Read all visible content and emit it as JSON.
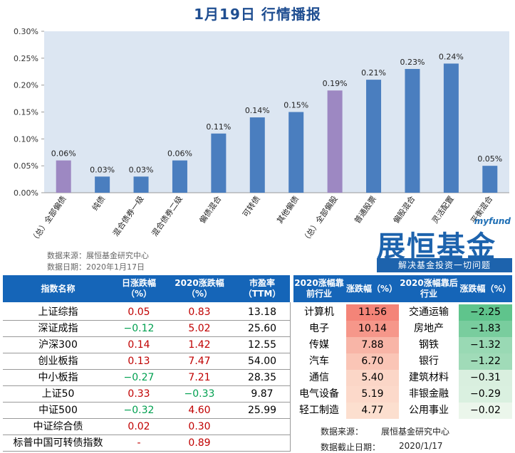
{
  "title": "1月19日  行情播报",
  "chart_data": {
    "type": "bar",
    "categories": [
      "（总）全部偏债",
      "纯债",
      "混合债券一级",
      "混合债券二级",
      "偏债混合",
      "可转债",
      "其他偏债",
      "（总）全部偏股",
      "普通股票",
      "偏股混合",
      "灵活配置",
      "平衡混合"
    ],
    "values": [
      0.06,
      0.03,
      0.03,
      0.06,
      0.11,
      0.14,
      0.15,
      0.19,
      0.21,
      0.23,
      0.24,
      0.05
    ],
    "value_labels": [
      "0.06%",
      "0.03%",
      "0.03%",
      "0.06%",
      "0.11%",
      "0.14%",
      "0.15%",
      "0.19%",
      "0.21%",
      "0.23%",
      "0.24%",
      "0.05%"
    ],
    "highlight": [
      true,
      false,
      false,
      false,
      false,
      false,
      false,
      true,
      false,
      false,
      false,
      false
    ],
    "yticks": [
      "0.00%",
      "0.05%",
      "0.10%",
      "0.15%",
      "0.20%",
      "0.25%",
      "0.30%"
    ],
    "ylim": [
      0,
      0.3
    ],
    "bar_color": "#4a7ebf",
    "highlight_color": "#9d88c2"
  },
  "chart_notes": {
    "source": "数据来源：展恒基金研究中心",
    "date": "数据日期：2020年1月17日"
  },
  "logo": {
    "top": "myfund",
    "main": "展恒基金",
    "sub": "解决基金投资一切问题"
  },
  "index_table": {
    "headers": [
      "指数名称",
      "日涨跌幅（%）",
      "2020涨跌幅（%）",
      "市盈率（TTM）"
    ],
    "rows": [
      {
        "name": "上证综指",
        "day": "0.05",
        "ytd": "0.83",
        "pe": "13.18",
        "day_dir": "up",
        "ytd_dir": "up"
      },
      {
        "name": "深证成指",
        "day": "−0.12",
        "ytd": "5.02",
        "pe": "25.60",
        "day_dir": "down",
        "ytd_dir": "up"
      },
      {
        "name": "沪深300",
        "day": "0.14",
        "ytd": "1.42",
        "pe": "12.55",
        "day_dir": "up",
        "ytd_dir": "up"
      },
      {
        "name": "创业板指",
        "day": "0.13",
        "ytd": "7.47",
        "pe": "54.00",
        "day_dir": "up",
        "ytd_dir": "up"
      },
      {
        "name": "中小板指",
        "day": "−0.27",
        "ytd": "7.21",
        "pe": "28.35",
        "day_dir": "down",
        "ytd_dir": "up"
      },
      {
        "name": "上证50",
        "day": "0.33",
        "ytd": "−0.33",
        "pe": "9.87",
        "day_dir": "up",
        "ytd_dir": "down"
      },
      {
        "name": "中证500",
        "day": "−0.32",
        "ytd": "4.60",
        "pe": "25.99",
        "day_dir": "down",
        "ytd_dir": "up"
      },
      {
        "name": "中证综合债",
        "day": "0.02",
        "ytd": "0.30",
        "pe": "",
        "day_dir": "up",
        "ytd_dir": "up"
      },
      {
        "name": "标普中国可转债指数",
        "day": "-",
        "ytd": "0.89",
        "pe": "",
        "day_dir": "up",
        "ytd_dir": "up"
      }
    ]
  },
  "industry_table": {
    "headers": [
      "2020涨幅靠前行业",
      "涨跌幅（%）",
      "2020涨幅靠后行业",
      "涨跌幅（%）"
    ],
    "rows": [
      {
        "top": "计算机",
        "top_val": 11.56,
        "top_text": "11.56",
        "bottom": "交通运输",
        "bottom_val": -2.25,
        "bottom_text": "−2.25"
      },
      {
        "top": "电子",
        "top_val": 10.14,
        "top_text": "10.14",
        "bottom": "房地产",
        "bottom_val": -1.83,
        "bottom_text": "−1.83"
      },
      {
        "top": "传媒",
        "top_val": 7.88,
        "top_text": "7.88",
        "bottom": "钢铁",
        "bottom_val": -1.32,
        "bottom_text": "−1.32"
      },
      {
        "top": "汽车",
        "top_val": 6.7,
        "top_text": "6.70",
        "bottom": "银行",
        "bottom_val": -1.22,
        "bottom_text": "−1.22"
      },
      {
        "top": "通信",
        "top_val": 5.4,
        "top_text": "5.40",
        "bottom": "建筑材料",
        "bottom_val": -0.31,
        "bottom_text": "−0.31"
      },
      {
        "top": "电气设备",
        "top_val": 5.19,
        "top_text": "5.19",
        "bottom": "非银金融",
        "bottom_val": -0.29,
        "bottom_text": "−0.29"
      },
      {
        "top": "轻工制造",
        "top_val": 4.77,
        "top_text": "4.77",
        "bottom": "公用事业",
        "bottom_val": -0.02,
        "bottom_text": "−0.02"
      }
    ],
    "source_label": "数据来源：",
    "source_value": "展恒基金研究中心",
    "date_label": "数据截止日期：",
    "date_value": "2020/1/17"
  }
}
